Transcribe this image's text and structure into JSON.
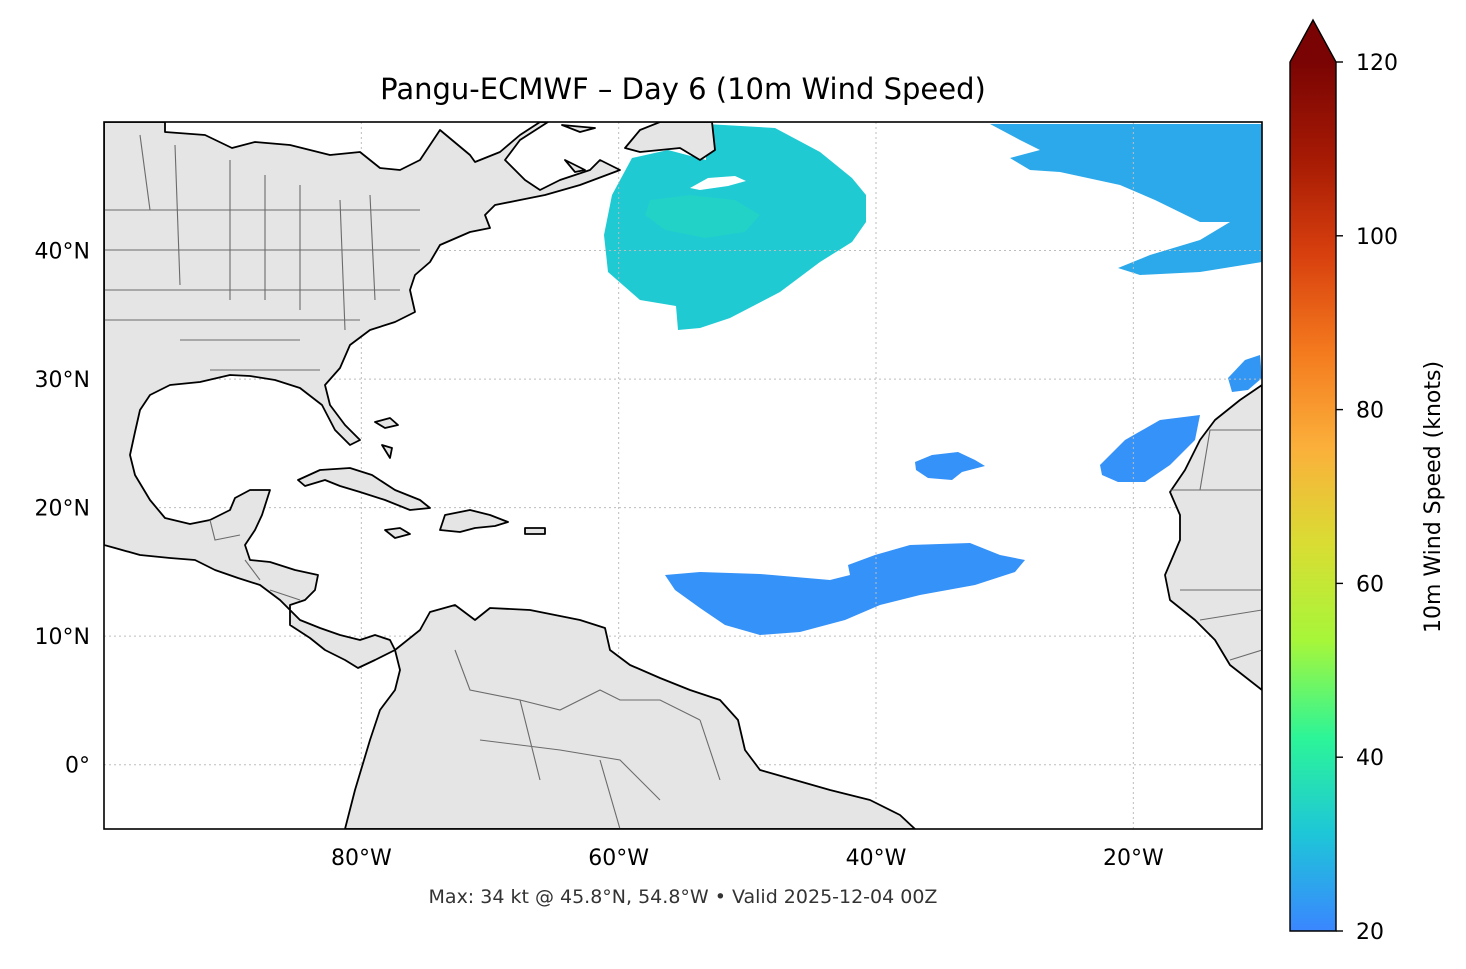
{
  "title": "Pangu-ECMWF – Day 6 (10m Wind Speed)",
  "footer": "Max: 34 kt @ 45.8°N, 54.8°W • Valid 2025-12-04 00Z",
  "map": {
    "lon_range": [
      -100,
      -10
    ],
    "lat_range": [
      -5,
      50
    ],
    "gridlines": "dotted",
    "land_color": "#e5e5e5",
    "ocean_color": "#ffffff",
    "x_ticks": [
      {
        "lon": -80,
        "label": "80°W"
      },
      {
        "lon": -60,
        "label": "60°W"
      },
      {
        "lon": -40,
        "label": "40°W"
      },
      {
        "lon": -20,
        "label": "20°W"
      }
    ],
    "y_ticks": [
      {
        "lat": 40,
        "label": "40°N"
      },
      {
        "lat": 30,
        "label": "30°N"
      },
      {
        "lat": 20,
        "label": "20°N"
      },
      {
        "lat": 10,
        "label": "10°N"
      },
      {
        "lat": 0,
        "label": "0°"
      }
    ]
  },
  "max_wind": {
    "value_kt": 34,
    "lat": 45.8,
    "lon": -54.8
  },
  "colorbar": {
    "label": "10m Wind Speed (knots)",
    "min": 20,
    "max": 120,
    "extend": "max",
    "ticks": [
      {
        "value": 20,
        "label": "20"
      },
      {
        "value": 40,
        "label": "40"
      },
      {
        "value": 60,
        "label": "60"
      },
      {
        "value": 80,
        "label": "80"
      },
      {
        "value": 100,
        "label": "100"
      },
      {
        "value": 120,
        "label": "120"
      }
    ],
    "colors": [
      "#3a86ff",
      "#1ec6d8",
      "#2cf598",
      "#a6f63a",
      "#d9dd33",
      "#fbb03b",
      "#f47a1e",
      "#d8400e",
      "#a61a04",
      "#7a0403"
    ],
    "extend_color": "#7a0403"
  },
  "wind_regions": [
    {
      "name": "newfoundland-storm",
      "speed_kt": 32
    },
    {
      "name": "northeast-jet",
      "speed_kt": 26
    },
    {
      "name": "trade-wind-band",
      "speed_kt": 22
    },
    {
      "name": "central-atlantic-patch",
      "speed_kt": 22
    },
    {
      "name": "canary-patch",
      "speed_kt": 22
    },
    {
      "name": "azores-patch",
      "speed_kt": 23
    }
  ]
}
